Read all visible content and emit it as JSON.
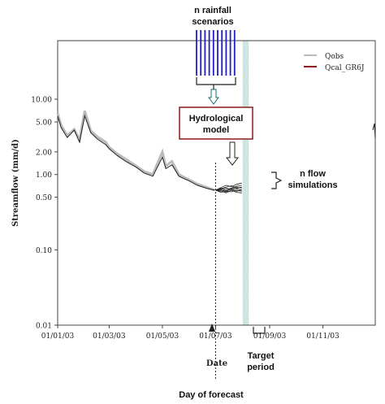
{
  "annotations": {
    "rainfall_line1": "n rainfall",
    "rainfall_line2": "scenarios",
    "model_line1": "Hydrological",
    "model_line2": "model",
    "flow_line1": "n flow",
    "flow_line2": "simulations",
    "date_label": "Date",
    "target_line1": "Target",
    "target_line2": "period",
    "day_of_forecast": "Day of forecast"
  },
  "chart_data": {
    "type": "line",
    "title": "",
    "xlabel": "",
    "ylabel": "Streamflow (mm/d)",
    "yscale": "log",
    "ylim": [
      0.01,
      60
    ],
    "xlim": [
      "01/01/03",
      "31/12/03"
    ],
    "x_ticks": [
      "01/01/03",
      "01/03/03",
      "01/05/03",
      "01/07/03",
      "01/09/03",
      "01/11/03"
    ],
    "y_ticks": [
      "0.01",
      "0.10",
      "0.50",
      "1.00",
      "2.00",
      "5.00",
      "10.00"
    ],
    "legend": {
      "placement": "top-right",
      "entries": [
        {
          "name": "Qobs",
          "color": "#bbbbbb"
        },
        {
          "name": "Qcal_GR6J",
          "color": "#8b1a1a"
        }
      ]
    },
    "series": [
      {
        "name": "Qobs",
        "x": [
          "01/01/03",
          "05/01/03",
          "12/01/03",
          "20/01/03",
          "26/01/03",
          "01/02/03",
          "08/02/03",
          "15/02/03",
          "25/02/03",
          "01/03/03",
          "10/03/03",
          "20/03/03",
          "01/04/03",
          "10/04/03",
          "20/04/03",
          "01/05/03",
          "05/05/03",
          "12/05/03",
          "20/05/03",
          "01/06/03",
          "10/06/03",
          "20/06/03",
          "30/06/03"
        ],
        "values": [
          6.5,
          4.5,
          3.3,
          4.0,
          2.9,
          7.0,
          3.8,
          3.2,
          2.7,
          2.3,
          1.9,
          1.6,
          1.3,
          1.1,
          1.0,
          2.0,
          1.3,
          1.5,
          1.0,
          0.85,
          0.75,
          0.68,
          0.62
        ]
      },
      {
        "name": "Qcal_GR6J",
        "x": [
          "01/01/03",
          "05/01/03",
          "12/01/03",
          "20/01/03",
          "26/01/03",
          "01/02/03",
          "08/02/03",
          "15/02/03",
          "25/02/03",
          "01/03/03",
          "10/03/03",
          "20/03/03",
          "01/04/03",
          "10/04/03",
          "20/04/03",
          "01/05/03",
          "05/05/03",
          "12/05/03",
          "20/05/03",
          "01/06/03",
          "10/06/03",
          "20/06/03",
          "30/06/03"
        ],
        "values": [
          6.0,
          4.2,
          3.1,
          3.9,
          2.7,
          6.0,
          3.6,
          3.0,
          2.5,
          2.2,
          1.8,
          1.5,
          1.25,
          1.05,
          0.95,
          1.7,
          1.2,
          1.35,
          0.95,
          0.82,
          0.72,
          0.66,
          0.62
        ]
      }
    ],
    "forecast_ensemble": {
      "start": "01/07/03",
      "end": "31/07/03",
      "members": [
        [
          0.62,
          0.64,
          0.66,
          0.63,
          0.65,
          0.62
        ],
        [
          0.62,
          0.6,
          0.63,
          0.66,
          0.7,
          0.72
        ],
        [
          0.62,
          0.66,
          0.61,
          0.64,
          0.6,
          0.63
        ],
        [
          0.62,
          0.58,
          0.6,
          0.59,
          0.62,
          0.6
        ],
        [
          0.62,
          0.67,
          0.72,
          0.69,
          0.74,
          0.77
        ],
        [
          0.62,
          0.61,
          0.57,
          0.62,
          0.58,
          0.57
        ],
        [
          0.62,
          0.65,
          0.68,
          0.71,
          0.66,
          0.68
        ],
        [
          0.62,
          0.63,
          0.59,
          0.65,
          0.68,
          0.66
        ]
      ]
    },
    "forecast_date": "01/07/03",
    "target_period": [
      "01/08/03",
      "08/08/03"
    ],
    "grid": false
  },
  "colors": {
    "rain_bars": "#2020c0",
    "target_band": "#cfe7e4",
    "obs_line": "#bbbbbb",
    "sim_line": "#222222",
    "model_border": "#8b1a1a",
    "ensemble": "#222222"
  }
}
